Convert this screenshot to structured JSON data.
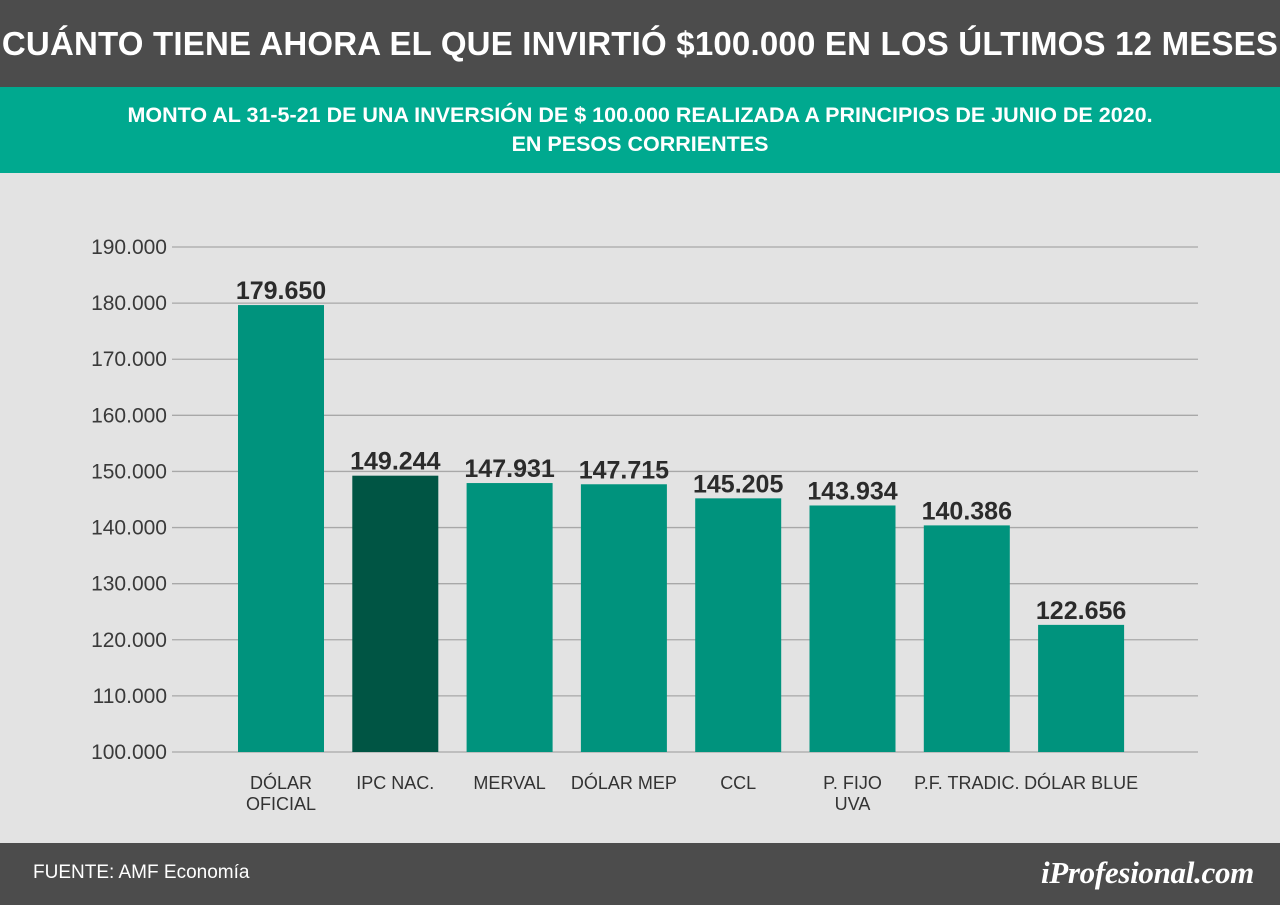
{
  "header": {
    "title": "CUÁNTO TIENE AHORA EL QUE INVIRTIÓ $100.000 EN LOS ÚLTIMOS 12 MESES",
    "subtitle_line1": "MONTO AL 31-5-21 DE UNA INVERSIÓN DE $ 100.000 REALIZADA A PRINCIPIOS DE JUNIO DE 2020.",
    "subtitle_line2": "EN PESOS CORRIENTES"
  },
  "footer": {
    "source": "FUENTE: AMF Economía",
    "brand": "iProfesional.com"
  },
  "colors": {
    "title_bg": "#4c4c4c",
    "subtitle_bg": "#00a98f",
    "plot_bg": "#e3e3e3",
    "bar": "#00937d",
    "bar_highlight": "#005544",
    "gridline": "#a8a8a8"
  },
  "chart_data": {
    "type": "bar",
    "categories": [
      [
        "DÓLAR",
        "OFICIAL"
      ],
      [
        "IPC NAC."
      ],
      [
        "MERVAL"
      ],
      [
        "DÓLAR MEP"
      ],
      [
        "CCL"
      ],
      [
        "P. FIJO",
        "UVA"
      ],
      [
        "P.F. TRADIC."
      ],
      [
        "DÓLAR BLUE"
      ]
    ],
    "values": [
      179650,
      149244,
      147931,
      147715,
      145205,
      143934,
      140386,
      122656
    ],
    "value_labels": [
      "179.650",
      "149.244",
      "147.931",
      "147.715",
      "145.205",
      "143.934",
      "140.386",
      "122.656"
    ],
    "highlight_index": 1,
    "ylim": [
      100000,
      190000
    ],
    "yticks": [
      100000,
      110000,
      120000,
      130000,
      140000,
      150000,
      160000,
      170000,
      180000,
      190000
    ],
    "ytick_labels": [
      "100.000",
      "110.000",
      "120.000",
      "130.000",
      "140.000",
      "150.000",
      "160.000",
      "170.000",
      "180.000",
      "190.000"
    ],
    "grid": true,
    "legend": "none"
  }
}
